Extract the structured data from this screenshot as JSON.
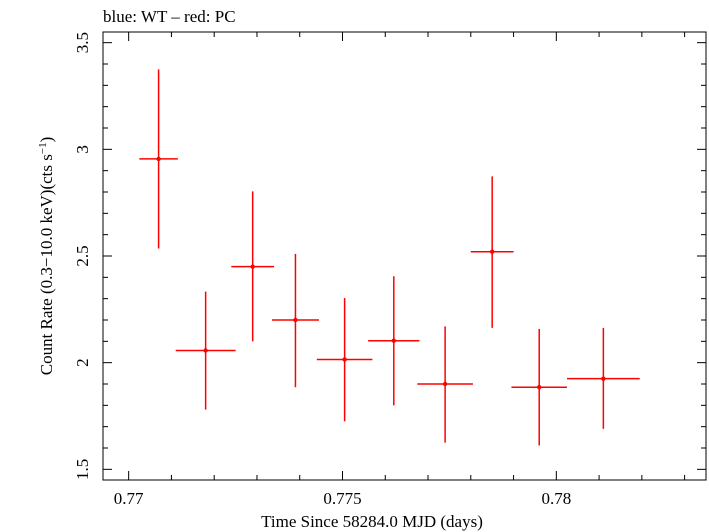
{
  "chart_data": {
    "type": "scatter",
    "title": "blue: WT – red: PC",
    "xlabel": "Time Since 58284.0 MJD (days)",
    "ylabel_main": "Count Rate (0.3−10.0 keV)(cts s",
    "ylabel_sup": "−1",
    "ylabel_close": ")",
    "xlim": [
      0.7694,
      0.7835
    ],
    "ylim": [
      1.45,
      3.55
    ],
    "xticks": [
      {
        "value": 0.77,
        "label": "0.77"
      },
      {
        "value": 0.775,
        "label": "0.775"
      },
      {
        "value": 0.78,
        "label": "0.78"
      }
    ],
    "yticks": [
      {
        "value": 1.5,
        "label": "1.5"
      },
      {
        "value": 2.0,
        "label": "2"
      },
      {
        "value": 2.5,
        "label": "2.5"
      },
      {
        "value": 3.0,
        "label": "3"
      },
      {
        "value": 3.5,
        "label": "3.5"
      }
    ],
    "series": [
      {
        "name": "PC",
        "color": "#ff0000",
        "points": [
          {
            "x": 0.7707,
            "y": 2.955,
            "xerr": 0.00045,
            "ylo": 2.535,
            "yhi": 3.375
          },
          {
            "x": 0.7718,
            "y": 2.057,
            "xerr": 0.0007,
            "ylo": 1.78,
            "yhi": 2.333
          },
          {
            "x": 0.7729,
            "y": 2.45,
            "xerr": 0.0005,
            "ylo": 2.1,
            "yhi": 2.803
          },
          {
            "x": 0.7739,
            "y": 2.2,
            "xerr": 0.00055,
            "ylo": 1.885,
            "yhi": 2.51
          },
          {
            "x": 0.77505,
            "y": 2.015,
            "xerr": 0.00065,
            "ylo": 1.725,
            "yhi": 2.303
          },
          {
            "x": 0.7762,
            "y": 2.103,
            "xerr": 0.0006,
            "ylo": 1.8,
            "yhi": 2.405
          },
          {
            "x": 0.7774,
            "y": 1.9,
            "xerr": 0.00065,
            "ylo": 1.625,
            "yhi": 2.17
          },
          {
            "x": 0.7785,
            "y": 2.52,
            "xerr": 0.0005,
            "ylo": 2.163,
            "yhi": 2.873
          },
          {
            "x": 0.7796,
            "y": 1.885,
            "xerr": 0.00065,
            "ylo": 1.612,
            "yhi": 2.158
          },
          {
            "x": 0.7811,
            "y": 1.925,
            "xerr": 0.00085,
            "ylo": 1.69,
            "yhi": 2.163
          }
        ]
      }
    ]
  }
}
